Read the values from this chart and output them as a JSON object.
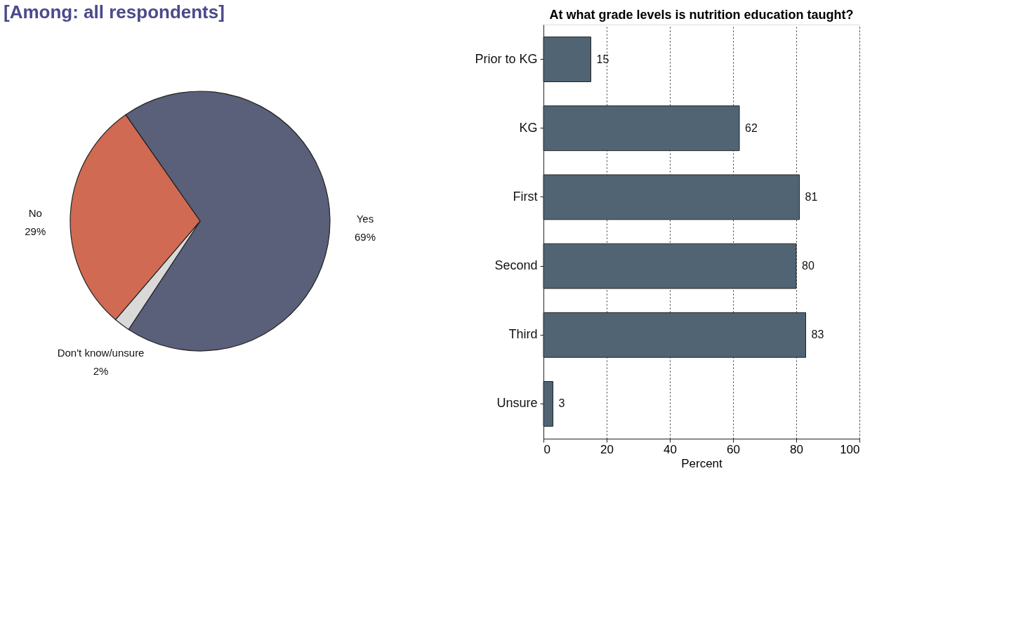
{
  "chart_data": [
    {
      "type": "pie",
      "title": "[Among: all respondents]",
      "categories": [
        "Yes",
        "Don't know/unsure",
        "No"
      ],
      "values": [
        69,
        2,
        29
      ],
      "colors": [
        "#5a5f7a",
        "#d9d9d9",
        "#d06a53"
      ],
      "value_labels": [
        "69%",
        "2%",
        "29%"
      ]
    },
    {
      "type": "bar",
      "orientation": "horizontal",
      "title": "At what grade levels is nutrition education taught?",
      "categories": [
        "Prior to KG",
        "KG",
        "First",
        "Second",
        "Third",
        "Unsure"
      ],
      "values": [
        15,
        62,
        81,
        80,
        83,
        3
      ],
      "color": "#506474",
      "xlim": [
        0,
        100
      ],
      "xticks": [
        0,
        20,
        40,
        60,
        80,
        100
      ],
      "xlabel": "Percent",
      "grid": "x",
      "data_labels": true
    }
  ]
}
